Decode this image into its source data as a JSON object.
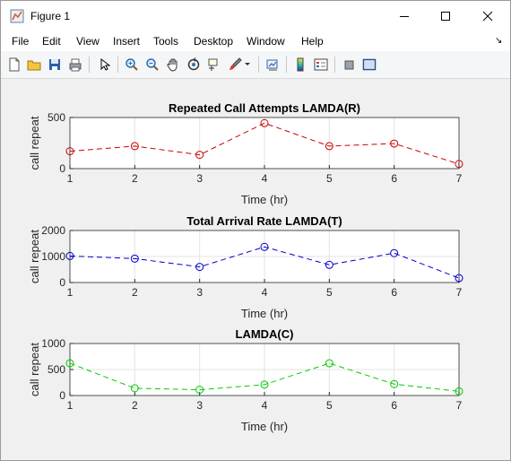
{
  "window": {
    "title": "Figure 1"
  },
  "menu": {
    "items": [
      "File",
      "Edit",
      "View",
      "Insert",
      "Tools",
      "Desktop",
      "Window",
      "Help"
    ]
  },
  "toolbar": {
    "icons": [
      "new-figure-icon",
      "open-file-icon",
      "save-icon",
      "print-icon",
      "pointer-icon",
      "zoom-in-icon",
      "zoom-out-icon",
      "pan-icon",
      "rotate-3d-icon",
      "data-cursor-icon",
      "brush-icon",
      "link-plot-icon",
      "colorbar-icon",
      "legend-icon",
      "hide-plot-tools-icon",
      "show-plot-tools-icon"
    ]
  },
  "colors": {
    "red": "#cc0000",
    "blue": "#0000cc",
    "green": "#00cc00"
  },
  "chart_data": [
    {
      "type": "line",
      "title": "Repeated Call Attempts LAMDA(R)",
      "xlabel": "Time (hr)",
      "ylabel": "call repeat",
      "x": [
        1,
        2,
        3,
        4,
        5,
        6,
        7
      ],
      "xticks": [
        "1",
        "2",
        "3",
        "4",
        "5",
        "6",
        "7"
      ],
      "ylim": [
        0,
        500
      ],
      "yticks": [
        "0",
        "500"
      ],
      "grid": true,
      "series": [
        {
          "values": [
            170,
            220,
            135,
            445,
            220,
            245,
            45
          ],
          "color": "#cc0000",
          "style": "dashed",
          "marker": "circle"
        }
      ]
    },
    {
      "type": "line",
      "title": "Total Arrival Rate LAMDA(T)",
      "xlabel": "Time (hr)",
      "ylabel": "call repeat",
      "x": [
        1,
        2,
        3,
        4,
        5,
        6,
        7
      ],
      "xticks": [
        "1",
        "2",
        "3",
        "4",
        "5",
        "6",
        "7"
      ],
      "ylim": [
        0,
        2000
      ],
      "yticks": [
        "0",
        "1000",
        "2000"
      ],
      "grid": true,
      "series": [
        {
          "values": [
            1020,
            920,
            600,
            1370,
            680,
            1130,
            170
          ],
          "color": "#0000cc",
          "style": "dashed",
          "marker": "circle"
        }
      ]
    },
    {
      "type": "line",
      "title": "LAMDA(C)",
      "xlabel": "Time (hr)",
      "ylabel": "call repeat",
      "x": [
        1,
        2,
        3,
        4,
        5,
        6,
        7
      ],
      "xticks": [
        "1",
        "2",
        "3",
        "4",
        "5",
        "6",
        "7"
      ],
      "ylim": [
        0,
        1000
      ],
      "yticks": [
        "0",
        "500",
        "1000"
      ],
      "grid": true,
      "series": [
        {
          "values": [
            620,
            140,
            110,
            210,
            620,
            220,
            80
          ],
          "color": "#00cc00",
          "style": "dashed",
          "marker": "circle"
        }
      ]
    }
  ]
}
